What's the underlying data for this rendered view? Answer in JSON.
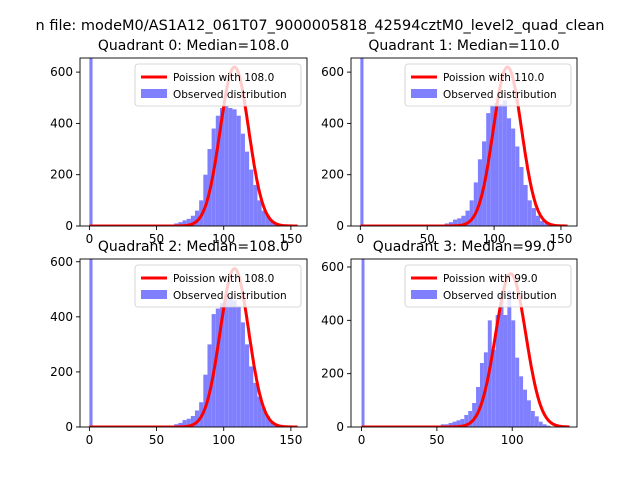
{
  "figure": {
    "suptitle": "n file: modeM0/AS1A12_061T07_9000005818_42594cztM0_level2_quad_clean"
  },
  "colors": {
    "hist": "#8080ff",
    "fit": "#ff0000",
    "axis": "#000000",
    "background": "#ffffff"
  },
  "chart_data": [
    {
      "type": "bar",
      "title": "Quadrant 0: Median=108.0",
      "xlim": [
        -7,
        162
      ],
      "ylim": [
        0,
        655
      ],
      "xticks": [
        0,
        50,
        100,
        150
      ],
      "yticks": [
        0,
        200,
        400,
        600
      ],
      "legend": {
        "position": "top-right",
        "entries": [
          "Poission with 108.0",
          "Observed distribution"
        ]
      },
      "fit": {
        "name": "Poission with 108.0",
        "mean": 108.0,
        "peak": 620,
        "sigma": 10.6,
        "x_range": [
          0,
          155
        ]
      },
      "zero_bin_count": 655,
      "bins": {
        "start": 60,
        "width": 3.1,
        "counts": [
          5,
          10,
          15,
          22,
          28,
          40,
          60,
          100,
          200,
          300,
          380,
          430,
          460,
          470,
          460,
          455,
          430,
          360,
          290,
          220,
          160,
          100,
          60,
          40,
          20,
          10,
          5
        ]
      }
    },
    {
      "type": "bar",
      "title": "Quadrant 1: Median=110.0",
      "xlim": [
        -7,
        162
      ],
      "ylim": [
        0,
        655
      ],
      "xticks": [
        0,
        50,
        100,
        150
      ],
      "yticks": [
        0,
        200,
        400,
        600
      ],
      "legend": {
        "position": "top-right",
        "entries": [
          "Poission with 110.0",
          "Observed distribution"
        ]
      },
      "fit": {
        "name": "Poission with 110.0",
        "mean": 110.0,
        "peak": 620,
        "sigma": 10.6,
        "x_range": [
          0,
          155
        ]
      },
      "zero_bin_count": 655,
      "bins": {
        "start": 60,
        "width": 3.1,
        "counts": [
          5,
          10,
          15,
          25,
          30,
          40,
          60,
          100,
          170,
          260,
          330,
          440,
          470,
          480,
          475,
          490,
          420,
          380,
          310,
          230,
          160,
          100,
          70,
          40,
          20,
          10,
          5
        ]
      }
    },
    {
      "type": "bar",
      "title": "Quadrant 2: Median=108.0",
      "xlim": [
        -7,
        162
      ],
      "ylim": [
        0,
        610
      ],
      "xticks": [
        0,
        50,
        100,
        150
      ],
      "yticks": [
        0,
        200,
        400,
        600
      ],
      "legend": {
        "position": "top-right",
        "entries": [
          "Poission with 108.0",
          "Observed distribution"
        ]
      },
      "fit": {
        "name": "Poission with 108.0",
        "mean": 108.0,
        "peak": 575,
        "sigma": 10.6,
        "x_range": [
          0,
          155
        ]
      },
      "zero_bin_count": 610,
      "bins": {
        "start": 60,
        "width": 3.1,
        "counts": [
          5,
          10,
          15,
          25,
          30,
          40,
          60,
          90,
          190,
          300,
          410,
          430,
          450,
          470,
          475,
          460,
          440,
          380,
          300,
          220,
          160,
          110,
          70,
          40,
          20,
          10,
          5
        ]
      }
    },
    {
      "type": "bar",
      "title": "Quadrant 3: Median=99.0",
      "xlim": [
        -7,
        143
      ],
      "ylim": [
        0,
        630
      ],
      "xticks": [
        0,
        50,
        100
      ],
      "yticks": [
        0,
        200,
        400,
        600
      ],
      "legend": {
        "position": "top-right",
        "entries": [
          "Poission with 99.0",
          "Observed distribution"
        ]
      },
      "fit": {
        "name": "Poission with 99.0",
        "mean": 99.0,
        "peak": 575,
        "sigma": 10.0,
        "x_range": [
          0,
          138
        ]
      },
      "zero_bin_count": 630,
      "bins": {
        "start": 50,
        "width": 2.6,
        "counts": [
          5,
          10,
          10,
          15,
          20,
          25,
          30,
          45,
          60,
          90,
          150,
          240,
          280,
          400,
          290,
          420,
          500,
          420,
          510,
          400,
          260,
          190,
          140,
          100,
          60,
          40,
          20,
          10,
          5
        ]
      }
    }
  ]
}
